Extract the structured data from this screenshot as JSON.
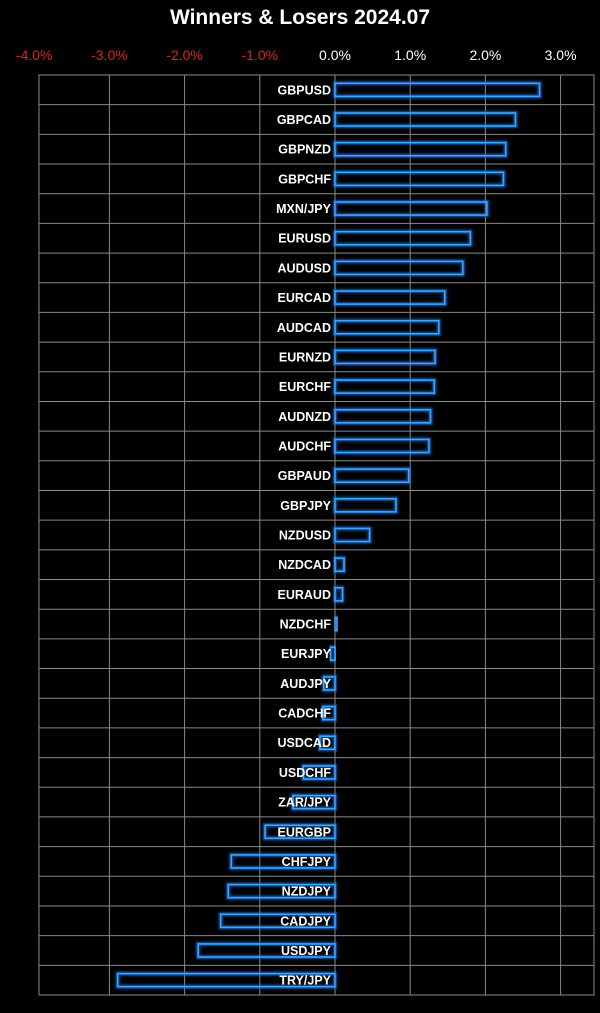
{
  "chart_data": {
    "type": "bar",
    "orientation": "horizontal",
    "title": "Winners & Losers 2024.07",
    "xlim": [
      -4.0,
      3.0
    ],
    "x_tick_labels": [
      "-4.0%",
      "-3.0%",
      "-2.0%",
      "-1.0%",
      "0.0%",
      "1.0%",
      "2.0%",
      "3.0%"
    ],
    "x_tick_values": [
      -4,
      -3,
      -2,
      -1,
      0,
      1,
      2,
      3
    ],
    "grid": true,
    "colors": {
      "background": "#000000",
      "grid": "#8a8a8a",
      "bar_stroke": "#3aa6ff",
      "bar_glow": "#1e6fd9",
      "negative_tick": "#e02020",
      "positive_tick": "#ffffff",
      "label": "#ffffff"
    },
    "categories": [
      "GBPUSD",
      "GBPCAD",
      "GBPNZD",
      "GBPCHF",
      "MXN/JPY",
      "EURUSD",
      "AUDUSD",
      "EURCAD",
      "AUDCAD",
      "EURNZD",
      "EURCHF",
      "AUDNZD",
      "AUDCHF",
      "GBPAUD",
      "GBPJPY",
      "NZDUSD",
      "NZDCAD",
      "EURAUD",
      "NZDCHF",
      "EURJPY",
      "AUDJPY",
      "CADCHF",
      "USDCAD",
      "USDCHF",
      "ZAR/JPY",
      "EURGBP",
      "CHFJPY",
      "NZDJPY",
      "CADJPY",
      "USDJPY",
      "TRY/JPY"
    ],
    "values": [
      2.72,
      2.4,
      2.27,
      2.24,
      2.02,
      1.8,
      1.7,
      1.46,
      1.38,
      1.33,
      1.32,
      1.27,
      1.25,
      0.98,
      0.81,
      0.46,
      0.12,
      0.1,
      0.02,
      -0.06,
      -0.15,
      -0.16,
      -0.2,
      -0.42,
      -0.56,
      -0.93,
      -1.38,
      -1.42,
      -1.52,
      -1.82,
      -2.89
    ]
  }
}
